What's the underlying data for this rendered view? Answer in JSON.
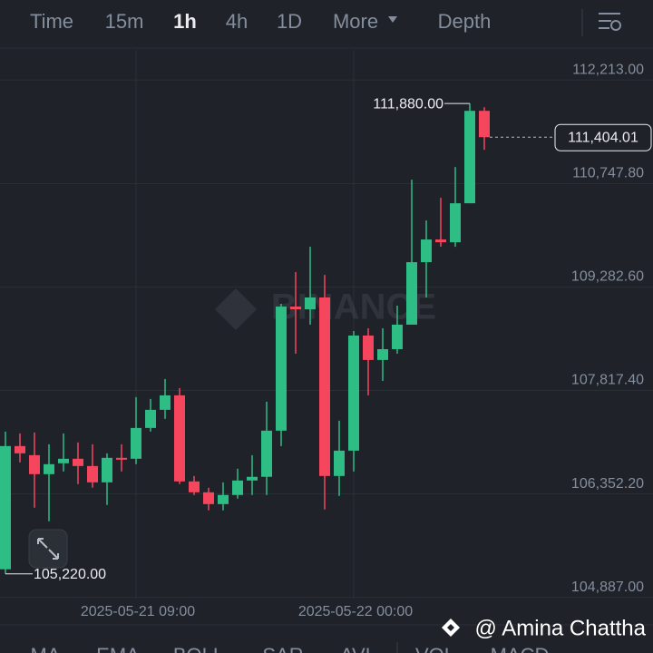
{
  "tabs": [
    {
      "label": "Time",
      "active": false
    },
    {
      "label": "15m",
      "active": false
    },
    {
      "label": "1h",
      "active": true
    },
    {
      "label": "4h",
      "active": false
    },
    {
      "label": "1D",
      "active": false
    },
    {
      "label": "More",
      "active": false
    },
    {
      "label": "Depth",
      "active": false
    }
  ],
  "watermark": "BINANCE",
  "credit": "@ Amina Chattha",
  "indicator_tabs": [
    "MA",
    "EMA",
    "BOLL",
    "SAR",
    "AVL",
    "VOL",
    "MACD"
  ],
  "chart_data": {
    "type": "candlestick",
    "categories": [
      null,
      null,
      null,
      null,
      null,
      null,
      null,
      null,
      null,
      "2025-05-21 09:00",
      null,
      null,
      null,
      null,
      null,
      null,
      null,
      null,
      null,
      null,
      null,
      null,
      null,
      null,
      "2025-05-22 00:00",
      null,
      null,
      null,
      null,
      null,
      null,
      null,
      null,
      null
    ],
    "open": [
      105285,
      107030,
      106901,
      106632,
      106786,
      106850,
      106747,
      106516,
      106863,
      106850,
      107286,
      107543,
      107748,
      106529,
      106375,
      106208,
      106337,
      106542,
      106594,
      107248,
      109005,
      108967,
      109134,
      106606,
      106965,
      108595,
      108249,
      108402,
      108749,
      109634,
      109955,
      109916,
      110468,
      111777
    ],
    "high": [
      107235,
      107209,
      107222,
      107055,
      107209,
      107081,
      107055,
      106927,
      107055,
      107723,
      107697,
      107979,
      107851,
      106606,
      106440,
      106516,
      106709,
      106901,
      107658,
      109044,
      109493,
      109852,
      109454,
      107389,
      108659,
      108698,
      108698,
      109018,
      110802,
      110224,
      110545,
      110981,
      111880,
      111828
    ],
    "low": [
      105220,
      106799,
      106157,
      105965,
      106670,
      106491,
      106440,
      106196,
      106670,
      106773,
      107235,
      107415,
      106491,
      106337,
      106119,
      106119,
      106286,
      106337,
      106337,
      107030,
      108338,
      108749,
      106132,
      106324,
      106670,
      107748,
      107953,
      108338,
      108749,
      109134,
      109852,
      109852,
      110468,
      111225
    ],
    "close": [
      107030,
      106927,
      106632,
      106773,
      106850,
      106747,
      106516,
      106863,
      106837,
      107286,
      107543,
      107748,
      106529,
      106375,
      106208,
      106337,
      106542,
      106594,
      107248,
      109005,
      108967,
      109134,
      106606,
      106965,
      108595,
      108249,
      108402,
      108749,
      109634,
      109955,
      109916,
      110468,
      111777,
      111404.01
    ],
    "up_color": "#2ebd85",
    "down_color": "#f6465d",
    "ylim": [
      104870,
      112640
    ],
    "yticks": [
      {
        "value": 112213,
        "label": "112,213.00"
      },
      {
        "value": 110747.8,
        "label": "110,747.80"
      },
      {
        "value": 109282.6,
        "label": "109,282.60"
      },
      {
        "value": 107817.4,
        "label": "107,817.40"
      },
      {
        "value": 106352.2,
        "label": "106,352.20"
      },
      {
        "value": 104887,
        "label": "104,887.00"
      }
    ],
    "annotations": [
      {
        "kind": "high",
        "value": 111880,
        "label": "111,880.00"
      },
      {
        "kind": "low",
        "value": 105220,
        "label": "105,220.00"
      },
      {
        "kind": "last",
        "value": 111404.01,
        "label": "111,404.01"
      }
    ],
    "grid": true
  }
}
